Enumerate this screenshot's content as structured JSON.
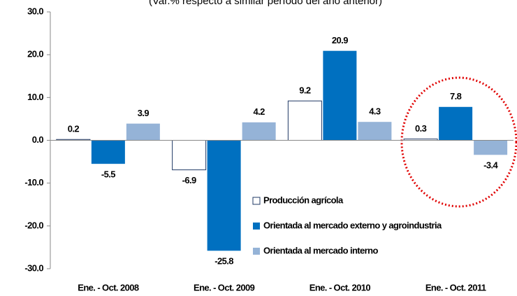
{
  "chart_data": {
    "type": "bar",
    "subtitle": "(Var.% respecto a similar período del año anterior)",
    "categories": [
      "Ene. - Oct. 2008",
      "Ene. - Oct. 2009",
      "Ene. - Oct. 2010",
      "Ene. - Oct. 2011"
    ],
    "series": [
      {
        "name": "Producción agrícola",
        "color": "#ffffff",
        "values": [
          0.2,
          -6.9,
          9.2,
          0.3
        ]
      },
      {
        "name": "Orientada al mercado externo  y agroindustria",
        "color": "#0070c0",
        "values": [
          -5.5,
          -25.8,
          20.9,
          7.8
        ]
      },
      {
        "name": "Orientada al mercado interno",
        "color": "#95b3d7",
        "values": [
          3.9,
          4.2,
          4.3,
          -3.4
        ]
      }
    ],
    "ylim": [
      -30,
      30
    ],
    "yticks": [
      {
        "value": 30,
        "label": "30.0"
      },
      {
        "value": 20,
        "label": "20.0"
      },
      {
        "value": 10,
        "label": "10.0"
      },
      {
        "value": 0,
        "label": "0.0"
      },
      {
        "value": -10,
        "label": "-10.0"
      },
      {
        "value": -20,
        "label": "-20.0"
      },
      {
        "value": -30,
        "label": "-30.0"
      }
    ],
    "grid": false
  }
}
